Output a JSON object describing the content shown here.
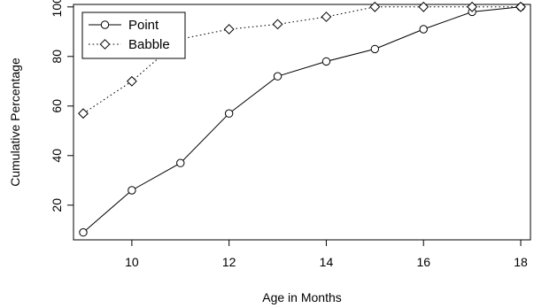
{
  "chart_data": {
    "type": "line",
    "xlabel": "Age in Months",
    "ylabel": "Cumulative Percentage",
    "xlim": [
      8.8,
      18.2
    ],
    "ylim": [
      6,
      101
    ],
    "xticks": [
      10,
      12,
      14,
      16,
      18
    ],
    "yticks": [
      20,
      40,
      60,
      80,
      100
    ],
    "legend": "top-left",
    "series": [
      {
        "name": "Point",
        "marker": "circle",
        "linestyle": "solid",
        "x": [
          9,
          10,
          11,
          12,
          13,
          14,
          15,
          16,
          17,
          18
        ],
        "y": [
          9,
          26,
          37,
          57,
          72,
          78,
          83,
          91,
          98,
          100
        ]
      },
      {
        "name": "Babble",
        "marker": "diamond",
        "linestyle": "dotted",
        "x": [
          9,
          10,
          11,
          12,
          13,
          14,
          15,
          16,
          17,
          18
        ],
        "y": [
          57,
          70,
          87,
          91,
          93,
          96,
          100,
          100,
          100,
          100
        ]
      }
    ]
  }
}
